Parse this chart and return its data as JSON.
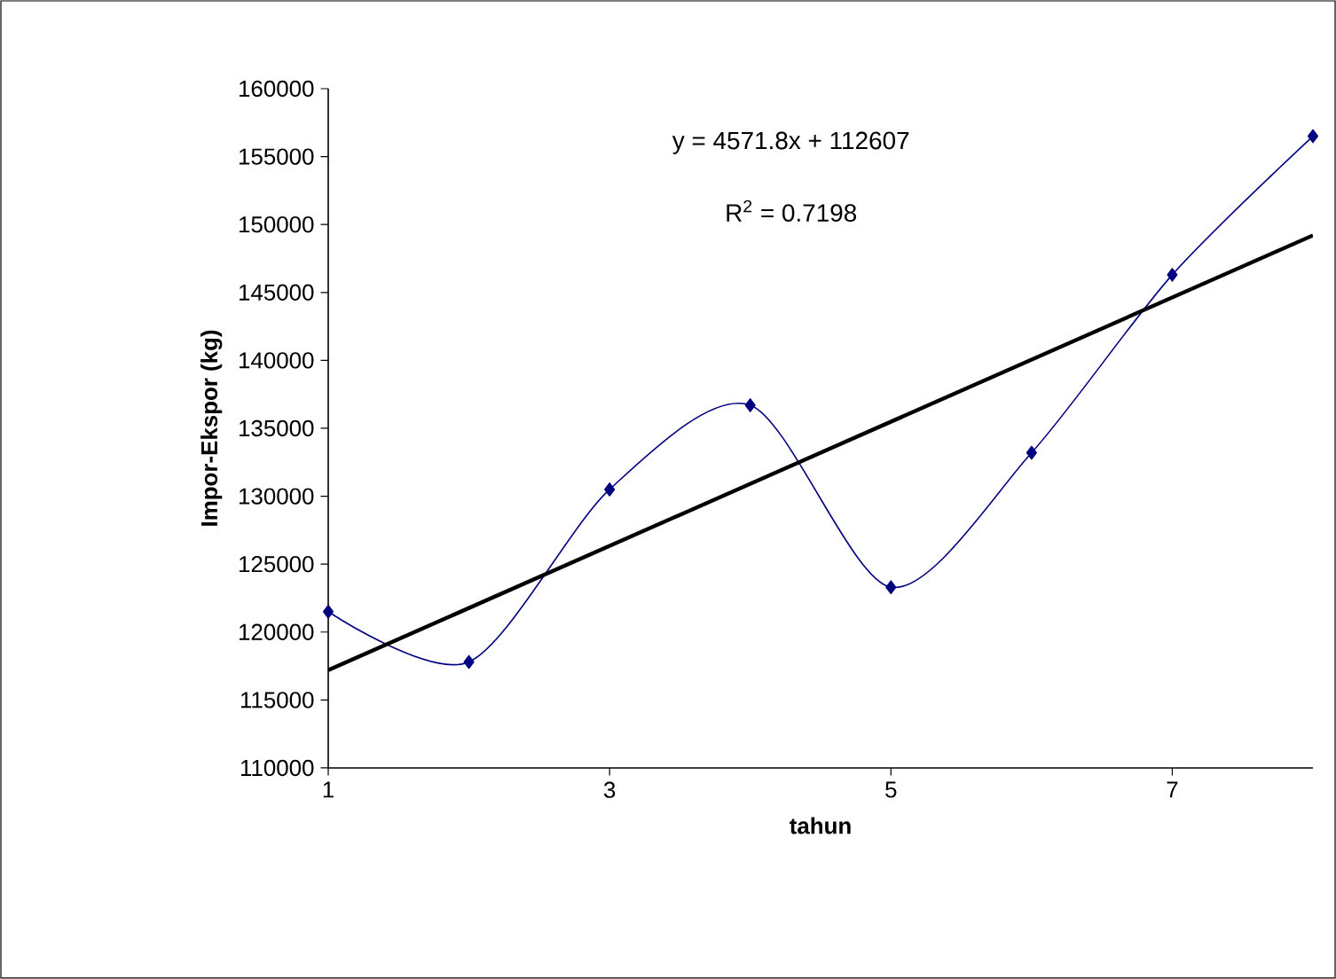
{
  "chart_data": {
    "type": "line",
    "xlabel": "tahun",
    "ylabel": "Impor-Ekspor (kg)",
    "annotations": [
      "y = 4571.8x + 112607",
      "R$^{2}$ = 0.7198"
    ],
    "xlim": [
      1,
      8
    ],
    "xticks": [
      1,
      3,
      5,
      7
    ],
    "ylim": [
      110000,
      160000
    ],
    "yticks": [
      110000,
      115000,
      120000,
      125000,
      130000,
      135000,
      140000,
      145000,
      150000,
      155000,
      160000
    ],
    "grid": false,
    "series": [
      {
        "color": "#000080",
        "marker": "diamond",
        "x": [
          1,
          2,
          3,
          4,
          5,
          6,
          7,
          8
        ],
        "values": [
          121500,
          117800,
          130500,
          136700,
          123300,
          133200,
          146300,
          156500
        ]
      },
      {
        "color": "#000000",
        "marker": "none",
        "x": [
          1,
          8
        ],
        "values": [
          117200,
          149200
        ]
      }
    ]
  }
}
